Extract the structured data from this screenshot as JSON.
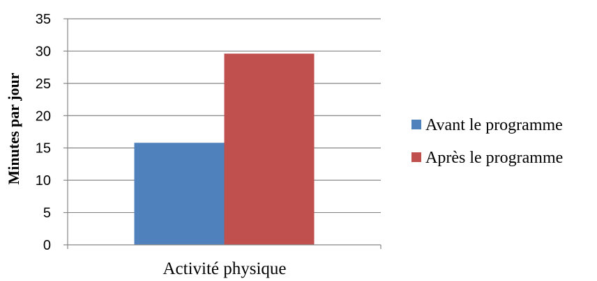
{
  "chart_data": {
    "type": "bar",
    "categories": [
      "Activité physique"
    ],
    "series": [
      {
        "name": "Avant le programme",
        "values": [
          15.8
        ],
        "color": "#4f81bd"
      },
      {
        "name": "Après le programme",
        "values": [
          29.6
        ],
        "color": "#c0504d"
      }
    ],
    "xlabel": "",
    "ylabel": "Minutes par jour",
    "ylim": [
      0,
      35
    ],
    "yticks": [
      0,
      5,
      10,
      15,
      20,
      25,
      30,
      35
    ],
    "grid": true,
    "legend_position": "right"
  }
}
